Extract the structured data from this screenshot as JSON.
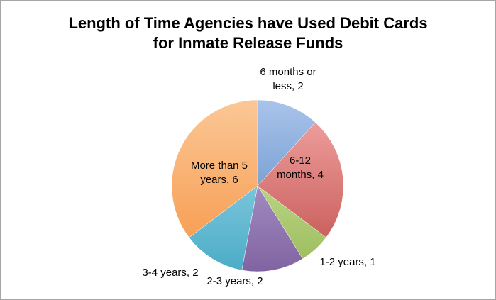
{
  "chart_data": {
    "type": "pie",
    "title": "Length of Time Agencies have Used Debit Cards for Inmate Release Funds",
    "title_lines": [
      "Length of Time Agencies have Used Debit Cards",
      "for Inmate Release Funds"
    ],
    "categories": [
      "6 months or less",
      "6-12 months",
      "1-2 years",
      "2-3 years",
      "3-4 years",
      "More than 5 years"
    ],
    "values": [
      2,
      4,
      1,
      2,
      2,
      6
    ],
    "data_label_lines": [
      [
        "6 months or",
        "less, 2"
      ],
      [
        "6-12",
        "months, 4"
      ],
      [
        "1-2 years, 1"
      ],
      [
        "2-3 years, 2"
      ],
      [
        "3-4 years, 2"
      ],
      [
        "More than 5",
        "years, 6"
      ]
    ],
    "colors": [
      "#4f81bd",
      "#c0504d",
      "#9bbb59",
      "#8064a2",
      "#4bacc6",
      "#f79646"
    ],
    "colors_light": [
      "#a9c4eb",
      "#f4a8a6",
      "#d6ecb0",
      "#c3b2dc",
      "#a9ddf0",
      "#fbc796"
    ],
    "legend": "none"
  }
}
